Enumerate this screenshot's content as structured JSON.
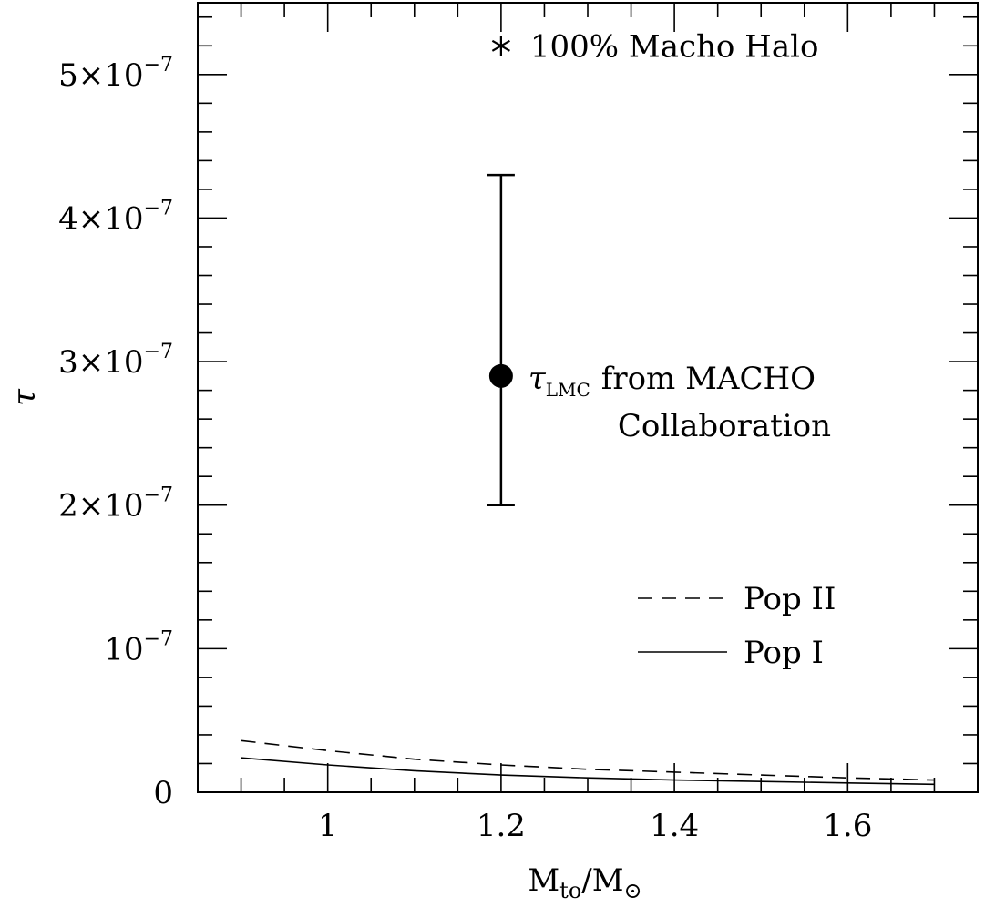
{
  "chart_data": {
    "type": "line",
    "xlabel": "M",
    "xlabel_sub": "to",
    "xlabel_sep": "/M",
    "xlabel_sun": "⊙",
    "ylabel": "τ",
    "xlim": [
      0.85,
      1.75
    ],
    "ylim": [
      0,
      5.5e-07
    ],
    "x_ticks": [
      {
        "value": 1.0,
        "label": "1"
      },
      {
        "value": 1.2,
        "label": "1.2"
      },
      {
        "value": 1.4,
        "label": "1.4"
      },
      {
        "value": 1.6,
        "label": "1.6"
      }
    ],
    "y_ticks": [
      {
        "value": 0,
        "label": "0",
        "base": "0",
        "exp": ""
      },
      {
        "value": 1e-07,
        "label": "10^-7",
        "base": "10",
        "exp": "−7"
      },
      {
        "value": 2e-07,
        "label": "2×10^-7",
        "base": "2×10",
        "exp": "−7"
      },
      {
        "value": 3e-07,
        "label": "3×10^-7",
        "base": "3×10",
        "exp": "−7"
      },
      {
        "value": 4e-07,
        "label": "4×10^-7",
        "base": "4×10",
        "exp": "−7"
      },
      {
        "value": 5e-07,
        "label": "5×10^-7",
        "base": "5×10",
        "exp": "−7"
      }
    ],
    "series": [
      {
        "name": "Pop II",
        "style": "dashed",
        "x": [
          0.9,
          1.0,
          1.1,
          1.2,
          1.3,
          1.4,
          1.5,
          1.6,
          1.7
        ],
        "y": [
          3.6e-08,
          2.9e-08,
          2.3e-08,
          1.9e-08,
          1.6e-08,
          1.4e-08,
          1.2e-08,
          1e-08,
          8.5e-09
        ]
      },
      {
        "name": "Pop I",
        "style": "solid",
        "x": [
          0.9,
          1.0,
          1.1,
          1.2,
          1.3,
          1.4,
          1.5,
          1.6,
          1.7
        ],
        "y": [
          2.4e-08,
          1.9e-08,
          1.5e-08,
          1.2e-08,
          1e-08,
          8.5e-09,
          7.5e-09,
          6.5e-09,
          5.5e-09
        ]
      }
    ],
    "macho_halo": {
      "x": 1.2,
      "y": 5.2e-07,
      "label": "100% Macho Halo"
    },
    "measurement": {
      "x": 1.2,
      "y": 2.9e-07,
      "y_low": 2e-07,
      "y_high": 4.3e-07,
      "label_symbol": "τ",
      "label_sub": "LMC",
      "label_line1": "from MACHO",
      "label_line2": "Collaboration"
    },
    "legend": {
      "placement": "lower-right",
      "entries": [
        {
          "name": "Pop II",
          "style": "dashed"
        },
        {
          "name": "Pop I",
          "style": "solid"
        }
      ]
    },
    "grid": false
  }
}
